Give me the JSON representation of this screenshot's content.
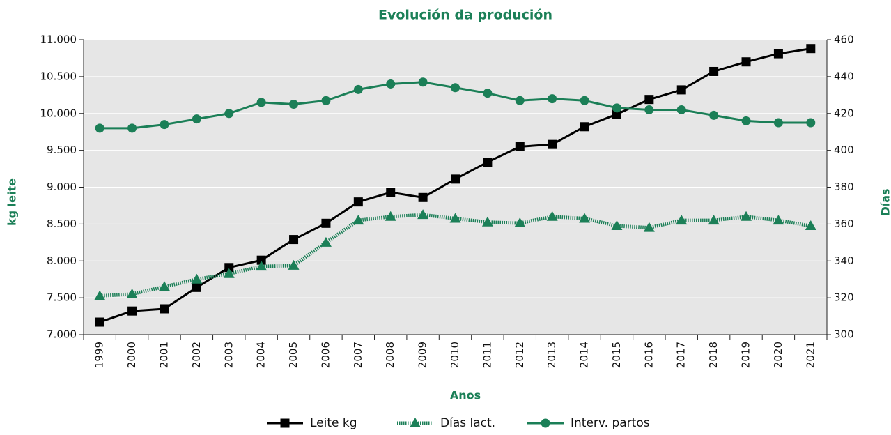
{
  "chart_data": {
    "type": "line",
    "title": "Evolución da produción",
    "xlabel": "Anos",
    "ylabel": "kg leite",
    "y2label": "Días",
    "categories": [
      "1999",
      "2000",
      "2001",
      "2002",
      "2003",
      "2004",
      "2005",
      "2006",
      "2007",
      "2008",
      "2009",
      "2010",
      "2011",
      "2012",
      "2013",
      "2014",
      "2015",
      "2016",
      "2017",
      "2018",
      "2019",
      "2020",
      "2021"
    ],
    "series": [
      {
        "name": "Leite kg",
        "color": "#000000",
        "marker": "square",
        "style": "solid",
        "axis": "y",
        "values": [
          7170,
          7320,
          7350,
          7640,
          7910,
          8010,
          8290,
          8510,
          8800,
          8930,
          8860,
          9110,
          9340,
          9550,
          9580,
          9820,
          9990,
          10190,
          10320,
          10570,
          10700,
          10810,
          10880
        ]
      },
      {
        "name": "Días lact.",
        "color": "#1b7f57",
        "marker": "triangle",
        "style": "dotted",
        "axis": "y2",
        "values": [
          321,
          322,
          326,
          330,
          333,
          337,
          337.5,
          350,
          362,
          364,
          365,
          363,
          361,
          360.5,
          364,
          363,
          359,
          358,
          362,
          362,
          364,
          362,
          359
        ]
      },
      {
        "name": "Interv. partos",
        "color": "#1b7f57",
        "marker": "circle",
        "style": "solid",
        "axis": "y2",
        "values": [
          412,
          412,
          414,
          417,
          420,
          426,
          425,
          427,
          433,
          436,
          437,
          434,
          431,
          427,
          428,
          427,
          423,
          422,
          422,
          419,
          416,
          415,
          415
        ]
      }
    ],
    "ylim": [
      7000,
      11000
    ],
    "yticks": [
      {
        "value": 7000,
        "label": "7.000"
      },
      {
        "value": 7500,
        "label": "7.500"
      },
      {
        "value": 8000,
        "label": "8.000"
      },
      {
        "value": 8500,
        "label": "8.500"
      },
      {
        "value": 9000,
        "label": "9.000"
      },
      {
        "value": 9500,
        "label": "9.500"
      },
      {
        "value": 10000,
        "label": "10.000"
      },
      {
        "value": 10500,
        "label": "10.500"
      },
      {
        "value": 11000,
        "label": "11.000"
      }
    ],
    "y2lim": [
      300,
      460
    ],
    "y2ticks": [
      300,
      320,
      340,
      360,
      380,
      400,
      420,
      440,
      460
    ],
    "grid": true,
    "legend": "bottom"
  }
}
